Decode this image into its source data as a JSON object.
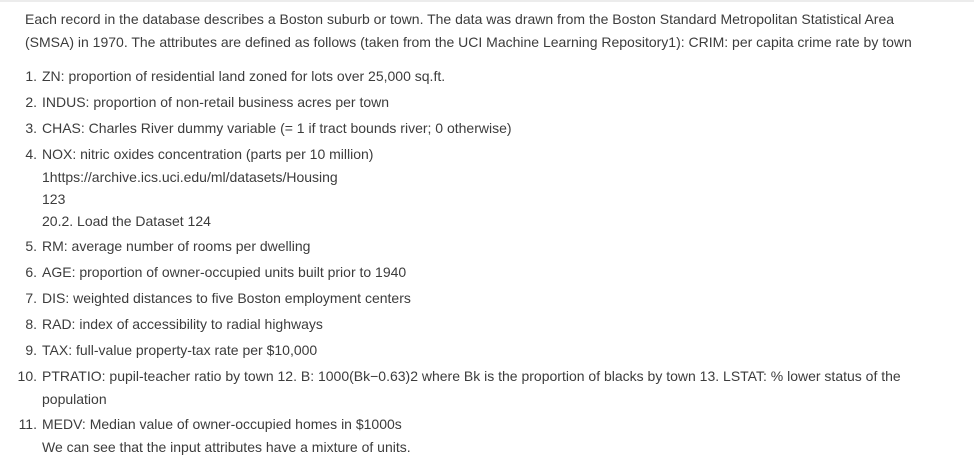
{
  "intro": {
    "line1": "Each record in the database describes a Boston suburb or town. The data was drawn from the Boston Standard Metropolitan Statistical Area",
    "line2": "(SMSA) in 1970. The attributes are defined as follows (taken from the UCI Machine Learning Repository1): CRIM: per capita crime rate by town"
  },
  "items": [
    {
      "num": "1.",
      "text": "ZN: proportion of residential land zoned for lots over 25,000 sq.ft."
    },
    {
      "num": "2.",
      "text": "INDUS: proportion of non-retail business acres per town"
    },
    {
      "num": "3.",
      "text": "CHAS: Charles River dummy variable (= 1 if tract bounds river; 0 otherwise)"
    },
    {
      "num": "4.",
      "text": "NOX: nitric oxides concentration (parts per 10 million)",
      "sub": [
        "1https://archive.ics.uci.edu/ml/datasets/Housing",
        "123",
        "20.2. Load the Dataset 124"
      ]
    },
    {
      "num": "5.",
      "text": "RM: average number of rooms per dwelling"
    },
    {
      "num": "6.",
      "text": "AGE: proportion of owner-occupied units built prior to 1940"
    },
    {
      "num": "7.",
      "text": "DIS: weighted distances to five Boston employment centers"
    },
    {
      "num": "8.",
      "text": "RAD: index of accessibility to radial highways"
    },
    {
      "num": "9.",
      "text": "TAX: full-value property-tax rate per $10,000"
    },
    {
      "num": "10.",
      "text": "PTRATIO: pupil-teacher ratio by town 12. B: 1000(Bk−0.63)2 where Bk is the proportion of blacks by town 13. LSTAT: % lower status of the",
      "sub": [
        "population"
      ]
    },
    {
      "num": "11.",
      "text": "MEDV: Median value of owner-occupied homes in $1000s",
      "sub": [
        "We can see that the input attributes have a mixture of units."
      ]
    }
  ]
}
